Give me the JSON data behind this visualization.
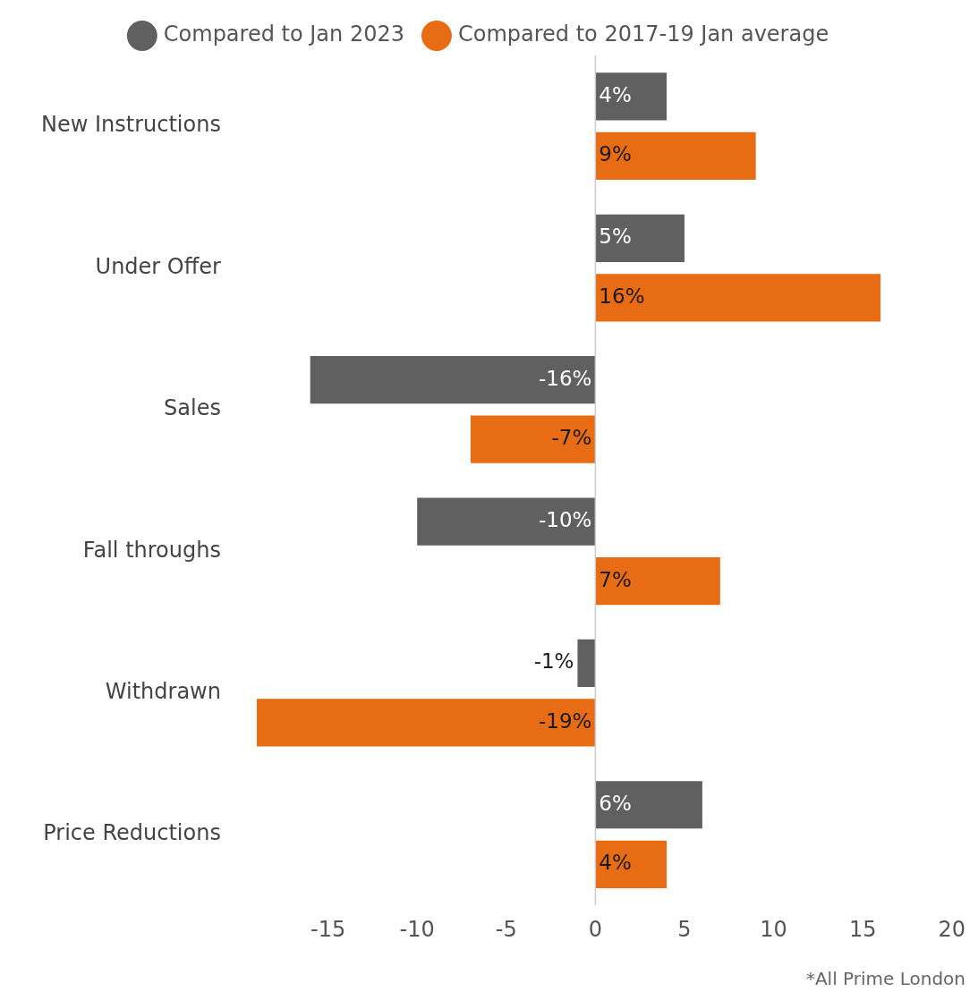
{
  "chart_data": {
    "type": "bar",
    "orientation": "horizontal",
    "categories": [
      "New Instructions",
      "Under Offer",
      "Sales",
      "Fall throughs",
      "Withdrawn",
      "Price Reductions"
    ],
    "series": [
      {
        "name": "Compared to Jan 2023",
        "color": "#606060",
        "values": [
          4,
          5,
          -16,
          -10,
          -1,
          6
        ],
        "value_labels": [
          "4%",
          "5%",
          "-16%",
          "-10%",
          "-1%",
          "6%"
        ]
      },
      {
        "name": "Compared to 2017-19 Jan average",
        "color": "#e86c13",
        "values": [
          9,
          16,
          -7,
          7,
          -19,
          4
        ],
        "value_labels": [
          "9%",
          "16%",
          "-7%",
          "7%",
          "-19%",
          "4%"
        ]
      }
    ],
    "ref_lines": [
      {
        "axis": "x",
        "value": 0,
        "color": "#cccccc"
      }
    ],
    "xlim": [
      -19,
      20
    ],
    "xticks": [
      -15,
      -10,
      -5,
      0,
      5,
      10,
      15,
      20
    ],
    "grid": false,
    "legend": "top",
    "annotations": [
      "*All Prime London"
    ]
  }
}
